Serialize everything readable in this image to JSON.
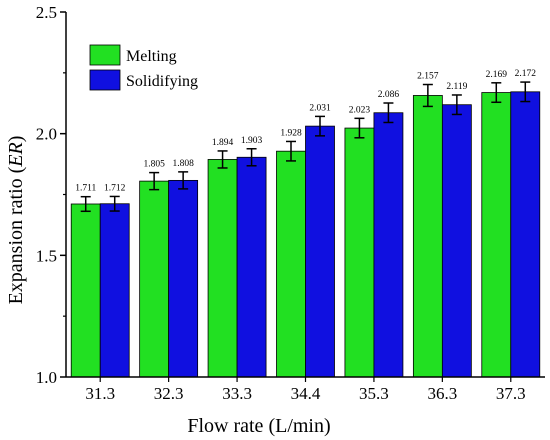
{
  "chart_data": {
    "type": "bar",
    "xlabel": "Flow rate (L/min)",
    "ylabel_prefix": "Expansion ratio (",
    "ylabel_italic": "ER",
    "ylabel_suffix": ")",
    "categories": [
      "31.3",
      "32.3",
      "33.3",
      "34.4",
      "35.3",
      "36.3",
      "37.3"
    ],
    "series": [
      {
        "name": "Melting",
        "color": "#22e022",
        "values": [
          1.711,
          1.805,
          1.894,
          1.928,
          2.023,
          2.157,
          2.169
        ],
        "labels": [
          "1.711",
          "1.805",
          "1.894",
          "1.928",
          "2.023",
          "2.157",
          "2.169"
        ],
        "errors": [
          0.03,
          0.035,
          0.035,
          0.04,
          0.04,
          0.045,
          0.04
        ]
      },
      {
        "name": "Solidifying",
        "color": "#1010e0",
        "values": [
          1.712,
          1.808,
          1.903,
          2.031,
          2.086,
          2.119,
          2.172
        ],
        "labels": [
          "1.712",
          "1.808",
          "1.903",
          "2.031",
          "2.086",
          "2.119",
          "2.172"
        ],
        "errors": [
          0.03,
          0.035,
          0.035,
          0.04,
          0.04,
          0.04,
          0.04
        ]
      }
    ],
    "ylim": [
      1.0,
      2.5
    ],
    "yticks": [
      "1.0",
      "1.5",
      "2.0",
      "2.5"
    ],
    "ytick_values": [
      1.0,
      1.5,
      2.0,
      2.5
    ],
    "grid": false,
    "legend_position": "top-left"
  }
}
